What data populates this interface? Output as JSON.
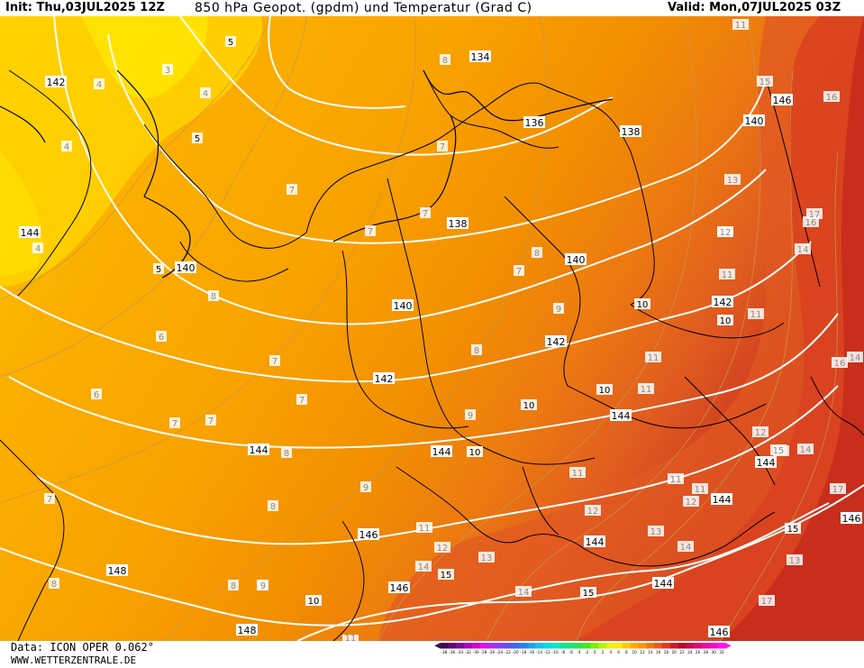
{
  "header": {
    "init": "Init: Thu,03JUL2025 12Z",
    "title": "850 hPa Geopot. (gpdm) und Temperatur (Grad C)",
    "valid": "Valid: Mon,07JUL2025 03Z"
  },
  "footer": {
    "data_source": "Data: ICON OPER 0.062°",
    "website": "WWW.WETTERZENTRALE.DE"
  },
  "colors": {
    "temp_3": "#ffe000",
    "temp_5": "#fdc000",
    "temp_7": "#fcaa00",
    "temp_9": "#f89400",
    "temp_11": "#f07a10",
    "temp_13": "#e86020",
    "temp_15": "#dd4a25",
    "temp_17": "#c83020",
    "geopotential_lines": "#ffffff",
    "isotherm_lines": "#c8964a",
    "borders": "#000000"
  },
  "colorbar": {
    "ticks": [
      "-38",
      "-36",
      "-34",
      "-32",
      "-30",
      "-28",
      "-26",
      "-24",
      "-22",
      "-20",
      "-18",
      "-16",
      "-14",
      "-12",
      "-10",
      "-8",
      "-6",
      "-4",
      "-2",
      "0",
      "2",
      "4",
      "6",
      "8",
      "10",
      "12",
      "14",
      "16",
      "18",
      "20",
      "22",
      "24",
      "26",
      "28",
      "30",
      "32"
    ],
    "colors": [
      "#3c0a50",
      "#5a0a78",
      "#7d0a9a",
      "#a50ab4",
      "#c80ad2",
      "#dc14e6",
      "#b428f0",
      "#8c3cf5",
      "#6450f0",
      "#3c64f0",
      "#2880f0",
      "#1ea0f0",
      "#14c0f0",
      "#0ad8e6",
      "#0ae6c8",
      "#0ae6a0",
      "#14e678",
      "#28e650",
      "#46e628",
      "#78f00a",
      "#b4f50a",
      "#e6f50a",
      "#ffe600",
      "#ffc800",
      "#ffaa00",
      "#fa9600",
      "#f07814",
      "#e65a1e",
      "#dc3c1e",
      "#c81e1e",
      "#b40a28",
      "#c80a50",
      "#dc0a78",
      "#ee0aa0",
      "#fa0ac8",
      "#ff14f0"
    ]
  },
  "geopotential_labels": [
    {
      "text": "142"
    },
    {
      "text": "144"
    },
    {
      "text": "140"
    },
    {
      "text": "134"
    },
    {
      "text": "136"
    },
    {
      "text": "138"
    },
    {
      "text": "138"
    },
    {
      "text": "140"
    },
    {
      "text": "140"
    },
    {
      "text": "140"
    },
    {
      "text": "142"
    },
    {
      "text": "142"
    },
    {
      "text": "142"
    },
    {
      "text": "144"
    },
    {
      "text": "144"
    },
    {
      "text": "144"
    },
    {
      "text": "144"
    },
    {
      "text": "144"
    },
    {
      "text": "146"
    },
    {
      "text": "146"
    },
    {
      "text": "146"
    },
    {
      "text": "144"
    },
    {
      "text": "144"
    },
    {
      "text": "148"
    },
    {
      "text": "148"
    },
    {
      "text": "146"
    },
    {
      "text": "146"
    }
  ],
  "temperature_labels": [
    {
      "text": "3"
    },
    {
      "text": "4"
    },
    {
      "text": "4"
    },
    {
      "text": "4"
    },
    {
      "text": "5"
    },
    {
      "text": "5"
    },
    {
      "text": "5"
    },
    {
      "text": "4"
    },
    {
      "text": "7"
    },
    {
      "text": "7"
    },
    {
      "text": "7"
    },
    {
      "text": "7"
    },
    {
      "text": "7"
    },
    {
      "text": "8"
    },
    {
      "text": "8"
    },
    {
      "text": "6"
    },
    {
      "text": "6"
    },
    {
      "text": "7"
    },
    {
      "text": "7"
    },
    {
      "text": "7"
    },
    {
      "text": "7"
    },
    {
      "text": "8"
    },
    {
      "text": "8"
    },
    {
      "text": "9"
    },
    {
      "text": "9"
    },
    {
      "text": "10"
    },
    {
      "text": "10"
    },
    {
      "text": "10"
    },
    {
      "text": "10"
    },
    {
      "text": "10"
    },
    {
      "text": "11"
    },
    {
      "text": "11"
    },
    {
      "text": "11"
    },
    {
      "text": "11"
    },
    {
      "text": "11"
    },
    {
      "text": "12"
    },
    {
      "text": "12"
    },
    {
      "text": "12"
    },
    {
      "text": "13"
    },
    {
      "text": "13"
    },
    {
      "text": "14"
    },
    {
      "text": "14"
    },
    {
      "text": "15"
    },
    {
      "text": "15"
    },
    {
      "text": "15"
    },
    {
      "text": "16"
    },
    {
      "text": "16"
    },
    {
      "text": "16"
    },
    {
      "text": "17"
    },
    {
      "text": "17"
    },
    {
      "text": "15"
    },
    {
      "text": "12"
    },
    {
      "text": "11"
    },
    {
      "text": "14"
    },
    {
      "text": "14"
    },
    {
      "text": "14"
    },
    {
      "text": "13"
    },
    {
      "text": "12"
    },
    {
      "text": "11"
    },
    {
      "text": "13"
    },
    {
      "text": "11"
    },
    {
      "text": "7"
    },
    {
      "text": "8"
    },
    {
      "text": "9"
    },
    {
      "text": "8"
    },
    {
      "text": "8"
    },
    {
      "text": "8"
    },
    {
      "text": "9"
    },
    {
      "text": "15"
    },
    {
      "text": "17"
    },
    {
      "text": "14"
    },
    {
      "text": "13"
    },
    {
      "text": "11"
    },
    {
      "text": "10"
    },
    {
      "text": "9"
    },
    {
      "text": "11"
    },
    {
      "text": "12"
    }
  ]
}
